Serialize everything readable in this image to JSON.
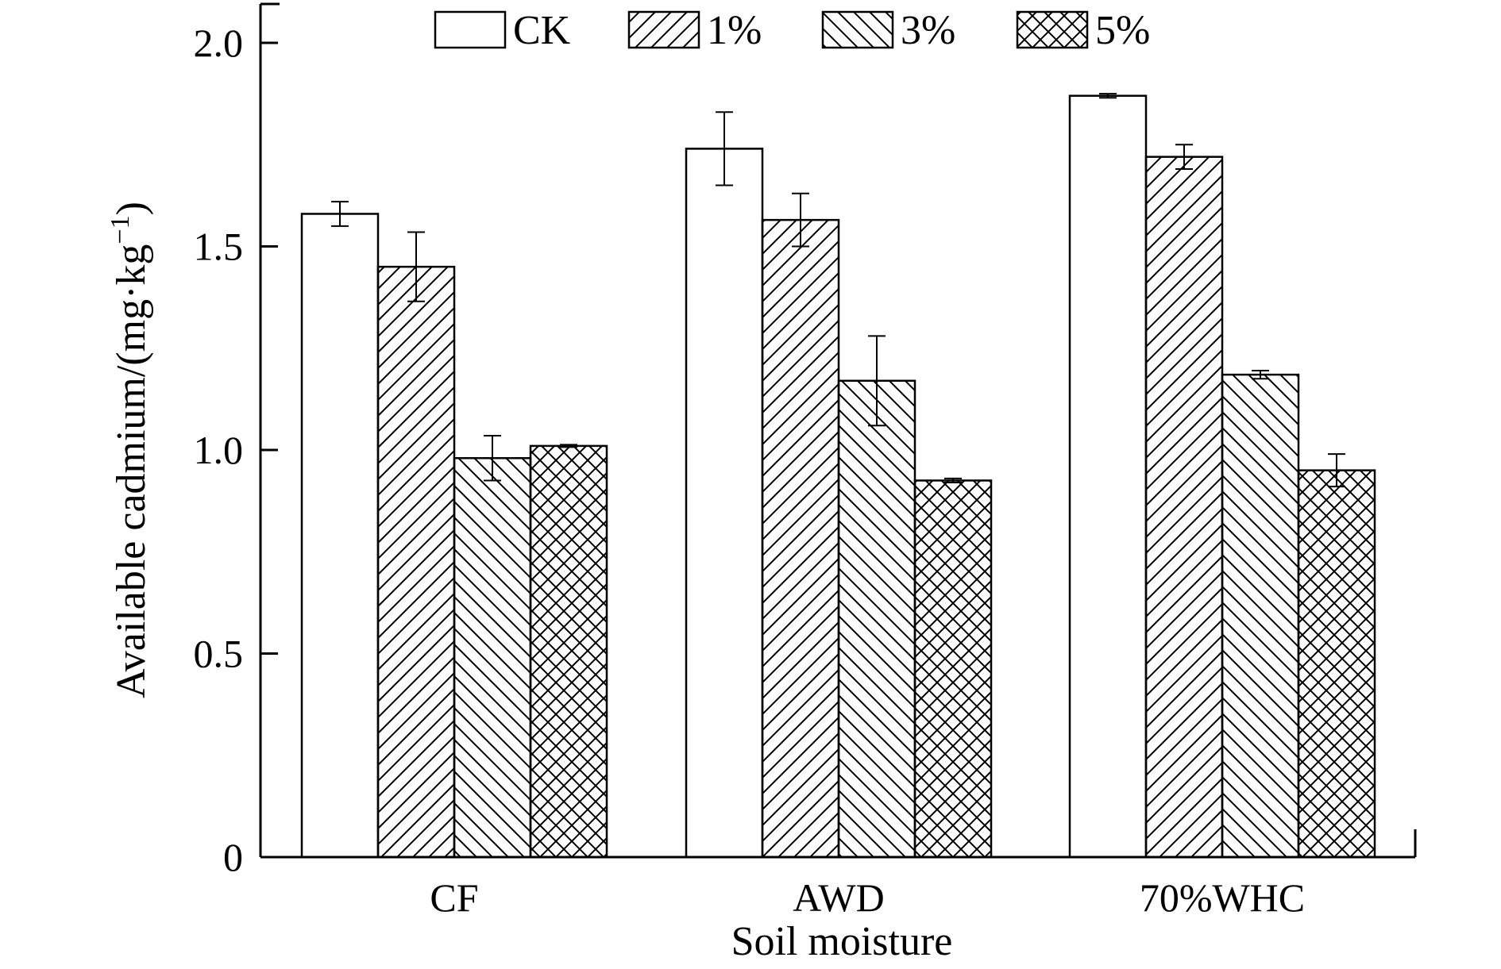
{
  "chart_data": {
    "type": "bar",
    "title": "",
    "xlabel": "Soil moisture",
    "ylabel": "Available cadmium/(mg·kg",
    "ylabel_superscript": "−1",
    "ylabel_suffix": ")",
    "ylim": [
      0,
      2.0
    ],
    "yticks": [
      0,
      0.5,
      1.0,
      1.5,
      2.0
    ],
    "ytick_labels": [
      "0",
      "0.5",
      "1.0",
      "1.5",
      "2.0"
    ],
    "categories": [
      "CF",
      "AWD",
      "70%WHC"
    ],
    "grid": false,
    "legend_position": "top",
    "series": [
      {
        "name": "CK",
        "pattern": "none",
        "values": [
          1.58,
          1.74,
          1.87
        ],
        "errors": [
          0.03,
          0.09,
          0.005
        ]
      },
      {
        "name": "1%",
        "pattern": "diag-up",
        "values": [
          1.45,
          1.565,
          1.72
        ],
        "errors": [
          0.085,
          0.065,
          0.03
        ]
      },
      {
        "name": "3%",
        "pattern": "diag-down",
        "values": [
          0.98,
          1.17,
          1.185
        ],
        "errors": [
          0.055,
          0.11,
          0.01
        ]
      },
      {
        "name": "5%",
        "pattern": "crosshatch",
        "values": [
          1.01,
          0.925,
          0.95
        ],
        "errors": [
          0.003,
          0.005,
          0.04
        ]
      }
    ]
  }
}
